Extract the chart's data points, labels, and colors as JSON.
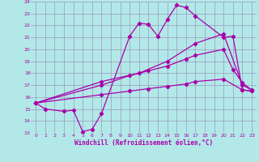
{
  "bg_color": "#b3e8e8",
  "grid_color": "#9999bb",
  "line_color": "#aa00aa",
  "xlabel": "Windchill (Refroidissement éolien,°C)",
  "xlim": [
    -0.5,
    23.5
  ],
  "ylim": [
    13,
    24
  ],
  "yticks": [
    13,
    14,
    15,
    16,
    17,
    18,
    19,
    20,
    21,
    22,
    23,
    24
  ],
  "xticks": [
    0,
    1,
    2,
    3,
    4,
    5,
    6,
    7,
    8,
    9,
    10,
    11,
    12,
    13,
    14,
    15,
    16,
    17,
    18,
    19,
    20,
    21,
    22,
    23
  ],
  "series1_x": [
    0,
    1,
    3,
    4,
    5,
    6,
    7,
    10,
    11,
    12,
    13,
    14,
    15,
    16,
    17,
    20,
    21,
    22,
    23
  ],
  "series1_y": [
    15.5,
    15.0,
    14.8,
    14.9,
    13.1,
    13.3,
    14.6,
    21.1,
    22.2,
    22.1,
    21.1,
    22.5,
    23.7,
    23.5,
    22.8,
    21.0,
    21.1,
    16.6,
    16.5
  ],
  "series2_x": [
    0,
    7,
    11,
    14,
    17,
    20,
    22,
    23
  ],
  "series2_y": [
    15.5,
    17.3,
    18.0,
    19.0,
    20.5,
    21.3,
    17.0,
    16.6
  ],
  "series3_x": [
    0,
    7,
    10,
    12,
    14,
    16,
    17,
    20,
    21,
    22,
    23
  ],
  "series3_y": [
    15.5,
    17.0,
    17.8,
    18.2,
    18.6,
    19.2,
    19.5,
    20.0,
    18.3,
    17.2,
    16.6
  ],
  "series4_x": [
    0,
    7,
    10,
    12,
    14,
    16,
    17,
    20,
    22,
    23
  ],
  "series4_y": [
    15.5,
    16.2,
    16.5,
    16.7,
    16.9,
    17.1,
    17.3,
    17.5,
    16.6,
    16.5
  ]
}
